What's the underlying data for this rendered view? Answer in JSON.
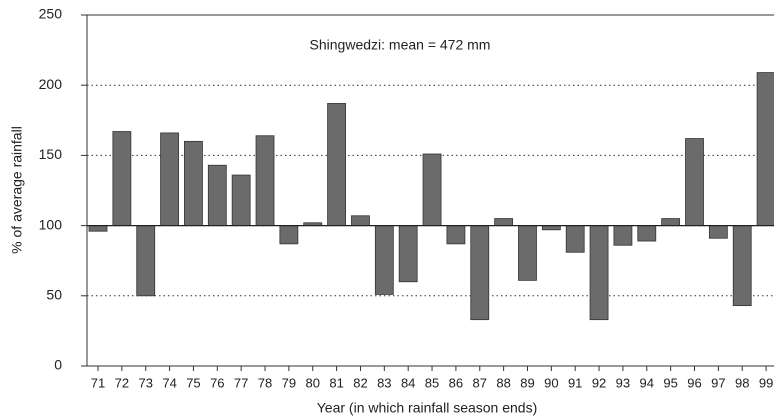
{
  "chart_data": {
    "type": "bar",
    "annotation": "Shingwedzi: mean = 472 mm",
    "x_label": "Year (in which rainfall season ends)",
    "y_label": "% of average rainfall",
    "categories": [
      "71",
      "72",
      "73",
      "74",
      "75",
      "76",
      "77",
      "78",
      "79",
      "80",
      "81",
      "82",
      "83",
      "84",
      "85",
      "86",
      "87",
      "88",
      "89",
      "90",
      "91",
      "92",
      "93",
      "94",
      "95",
      "96",
      "97",
      "98",
      "99"
    ],
    "values": [
      96,
      167,
      50,
      166,
      160,
      143,
      136,
      164,
      87,
      102,
      187,
      107,
      51,
      60,
      151,
      87,
      33,
      105,
      61,
      97,
      81,
      33,
      86,
      89,
      105,
      162,
      91,
      43,
      209
    ],
    "baseline": 100,
    "color": "#6b6b6b",
    "ylim": [
      0,
      250
    ],
    "yticks": [
      0,
      50,
      100,
      150,
      200,
      250
    ],
    "grid": true
  }
}
